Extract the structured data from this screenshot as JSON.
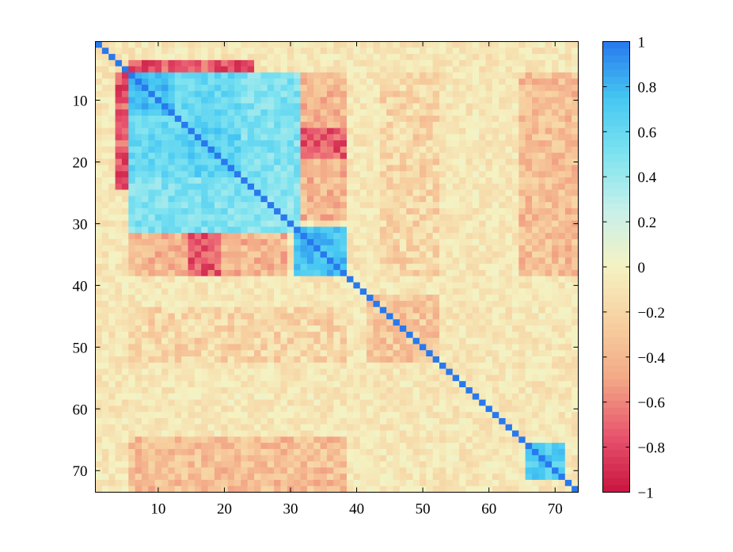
{
  "chart_data": {
    "type": "heatmap",
    "title": "",
    "xlabel": "",
    "ylabel": "",
    "n": 73,
    "xlim": [
      0.5,
      73.5
    ],
    "ylim": [
      73.5,
      0.5
    ],
    "x_ticks": [
      10,
      20,
      30,
      40,
      50,
      60,
      70
    ],
    "y_ticks": [
      10,
      20,
      30,
      40,
      50,
      60,
      70
    ],
    "x_tick_labels": [
      "10",
      "20",
      "30",
      "40",
      "50",
      "60",
      "70"
    ],
    "y_tick_labels": [
      "10",
      "20",
      "30",
      "40",
      "50",
      "60",
      "70"
    ],
    "colorbar": {
      "range": [
        -1,
        1
      ],
      "ticks": [
        1,
        0.8,
        0.6,
        0.4,
        0.2,
        0,
        -0.2,
        -0.4,
        -0.6,
        -0.8,
        -1
      ],
      "tick_labels": [
        "1",
        "0.8",
        "0.6",
        "0.4",
        "0.2",
        "0",
        "−0.2",
        "−0.4",
        "−0.6",
        "−0.8",
        "−1"
      ],
      "colors": {
        "-1": "#c8143f",
        "-0.75": "#e8546e",
        "-0.5": "#f2a785",
        "-0.25": "#f7cf9f",
        "0": "#f5f2c2",
        "0.25": "#c8f0ea",
        "0.5": "#7ee3f0",
        "0.75": "#45c7f2",
        "1": "#2878ee"
      }
    },
    "diagonal": 1,
    "positive_blocks": [
      {
        "rows": [
          6,
          22
        ],
        "cols": [
          6,
          22
        ],
        "value": 0.6
      },
      {
        "rows": [
          6,
          12
        ],
        "cols": [
          6,
          12
        ],
        "value": 0.75
      },
      {
        "rows": [
          15,
          22
        ],
        "cols": [
          15,
          22
        ],
        "value": 0.65
      },
      {
        "rows": [
          23,
          31
        ],
        "cols": [
          23,
          31
        ],
        "value": 0.45
      },
      {
        "rows": [
          6,
          22
        ],
        "cols": [
          23,
          31
        ],
        "value": 0.5
      },
      {
        "rows": [
          23,
          31
        ],
        "cols": [
          6,
          22
        ],
        "value": 0.5
      },
      {
        "rows": [
          31,
          38
        ],
        "cols": [
          31,
          38
        ],
        "value": 0.75
      },
      {
        "rows": [
          66,
          71
        ],
        "cols": [
          66,
          71
        ],
        "value": 0.7
      }
    ],
    "negative_blocks": [
      {
        "rows": [
          4,
          5
        ],
        "cols": [
          6,
          24
        ],
        "value": -0.75
      },
      {
        "rows": [
          6,
          24
        ],
        "cols": [
          4,
          5
        ],
        "value": -0.75
      },
      {
        "rows": [
          31,
          38
        ],
        "cols": [
          6,
          29
        ],
        "value": -0.4
      },
      {
        "rows": [
          6,
          29
        ],
        "cols": [
          31,
          38
        ],
        "value": -0.4
      },
      {
        "rows": [
          15,
          19
        ],
        "cols": [
          32,
          38
        ],
        "value": -0.75
      },
      {
        "rows": [
          32,
          38
        ],
        "cols": [
          15,
          19
        ],
        "value": -0.75
      },
      {
        "rows": [
          65,
          73
        ],
        "cols": [
          6,
          38
        ],
        "value": -0.35
      },
      {
        "rows": [
          6,
          38
        ],
        "cols": [
          65,
          73
        ],
        "value": -0.35
      },
      {
        "rows": [
          42,
          52
        ],
        "cols": [
          42,
          52
        ],
        "value": -0.3
      },
      {
        "rows": [
          44,
          52
        ],
        "cols": [
          6,
          38
        ],
        "value": -0.2
      },
      {
        "rows": [
          6,
          38
        ],
        "cols": [
          44,
          52
        ],
        "value": -0.2
      }
    ]
  }
}
